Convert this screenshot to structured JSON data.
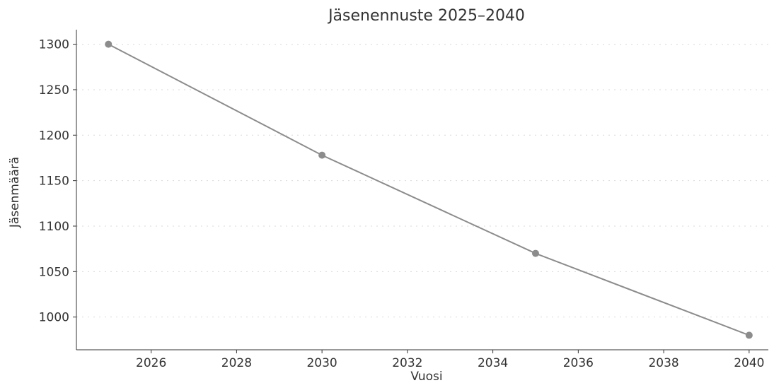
{
  "chart_data": {
    "type": "line",
    "title": "Jäsenennuste 2025–2040",
    "xlabel": "Vuosi",
    "ylabel": "Jäsenmäärä",
    "x": [
      2025,
      2030,
      2035,
      2040
    ],
    "series": [
      {
        "values": [
          1300,
          1178,
          1070,
          980
        ]
      }
    ],
    "xlim": [
      2024.25,
      2040.45
    ],
    "ylim": [
      964,
      1316
    ],
    "xticks": [
      2026,
      2028,
      2030,
      2032,
      2034,
      2036,
      2038,
      2040
    ],
    "yticks": [
      1000,
      1050,
      1100,
      1150,
      1200,
      1250,
      1300
    ],
    "grid": true,
    "colors": {
      "series": "#8c8c8c",
      "grid": "#d9d9d9",
      "axis": "#333333"
    }
  }
}
